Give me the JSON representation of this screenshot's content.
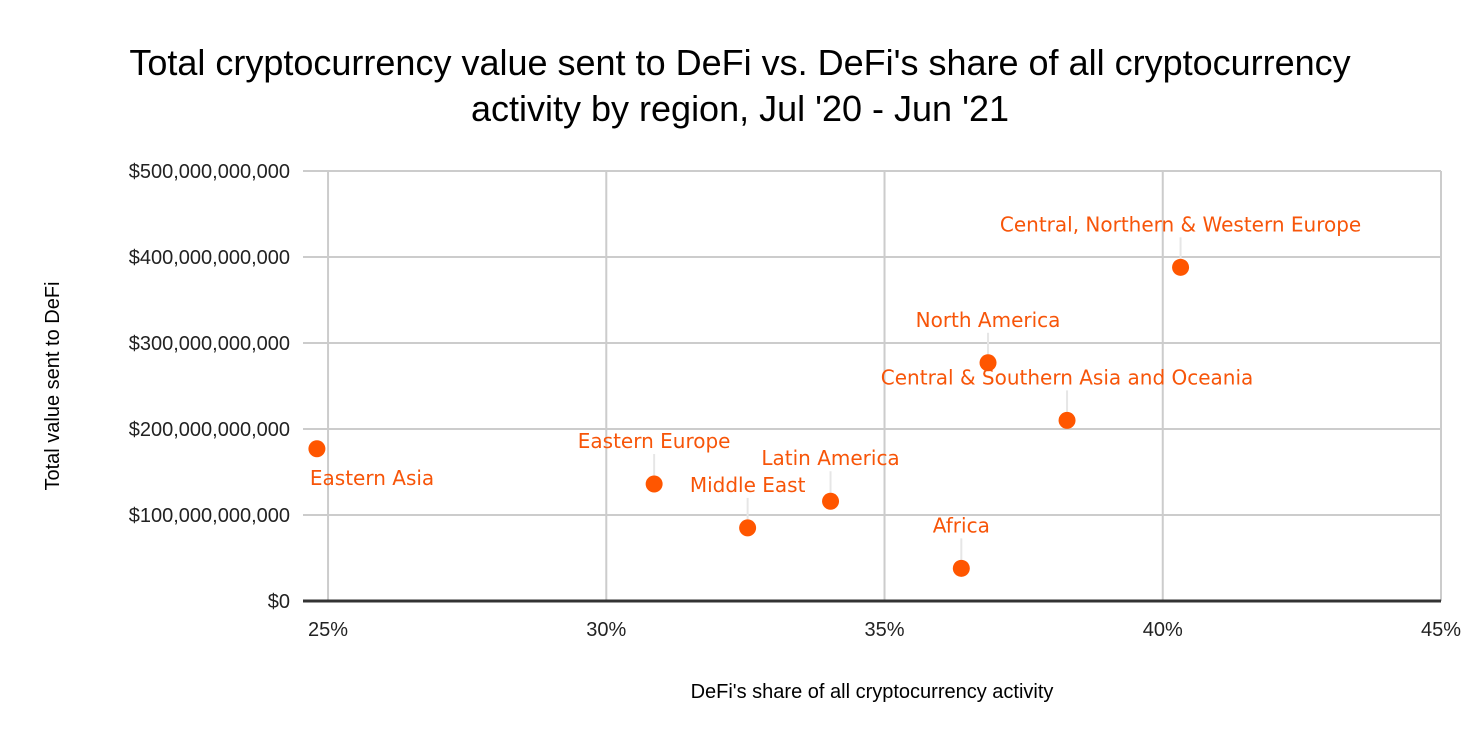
{
  "chart_data": {
    "type": "scatter",
    "title": [
      "Total cryptocurrency value sent to DeFi vs. DeFi's share of all cryptocurrency",
      "activity by region, Jul '20 - Jun '21"
    ],
    "xlabel": "DeFi's share of all cryptocurrency activity",
    "ylabel": "Total value sent to DeFi",
    "xlim": [
      24.55,
      45
    ],
    "ylim": [
      0,
      500000000000
    ],
    "x_ticks": [
      25,
      30,
      35,
      40,
      45
    ],
    "x_tick_labels": [
      "25%",
      "30%",
      "35%",
      "40%",
      "45%"
    ],
    "y_ticks": [
      0,
      100000000000,
      200000000000,
      300000000000,
      400000000000,
      500000000000
    ],
    "y_tick_labels": [
      "$0",
      "$100,000,000,000",
      "$200,000,000,000",
      "$300,000,000,000",
      "$400,000,000,000",
      "$500,000,000,000"
    ],
    "grid": true,
    "legend": "none",
    "point_color": "#ff5600",
    "label_color": "#f75509",
    "points": [
      {
        "label": "Eastern Asia",
        "x": 24.8,
        "y": 177000000000,
        "label_pos": "below"
      },
      {
        "label": "Eastern Europe",
        "x": 30.86,
        "y": 136000000000,
        "label_pos": "above"
      },
      {
        "label": "Middle East",
        "x": 32.54,
        "y": 85000000000,
        "label_pos": "above"
      },
      {
        "label": "Latin America",
        "x": 34.03,
        "y": 116000000000,
        "label_pos": "above"
      },
      {
        "label": "Africa",
        "x": 36.38,
        "y": 38000000000,
        "label_pos": "above"
      },
      {
        "label": "North America",
        "x": 36.86,
        "y": 277000000000,
        "label_pos": "above"
      },
      {
        "label": "Central & Southern Asia and Oceania",
        "x": 38.28,
        "y": 210000000000,
        "label_pos": "above"
      },
      {
        "label": "Central, Northern & Western Europe",
        "x": 40.32,
        "y": 388000000000,
        "label_pos": "above"
      }
    ]
  }
}
